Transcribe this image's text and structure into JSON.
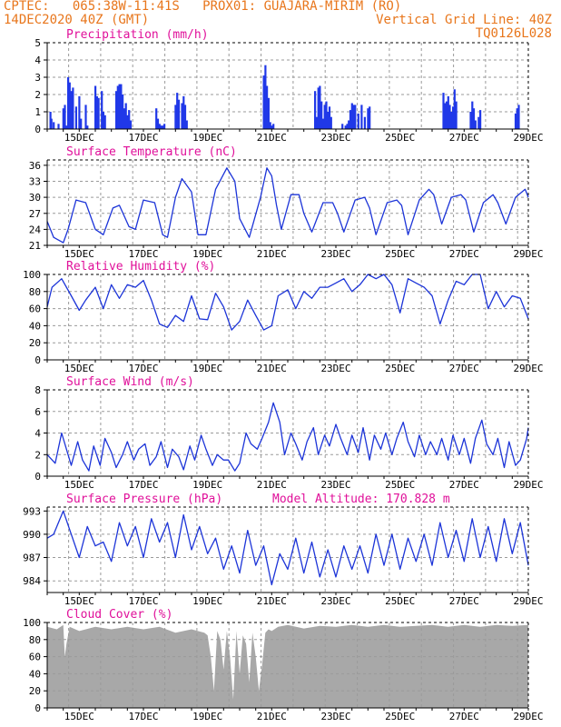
{
  "header": {
    "line1": "CPTEC:   065:38W-11:41S   PROX01: GUAJARA-MIRIM (RO)",
    "line2_left": "14DEC2020 40Z (GMT)",
    "line2_right": "Vertical Grid Line: 40Z",
    "line3_right": "TQ0126L028"
  },
  "colors": {
    "header": "#e8761c",
    "panel_title": "#e0109a",
    "series_line": "#1c34d8",
    "bar": "#2038e8",
    "cloud": "#a8a8a8",
    "grid": "#9a9a9a"
  },
  "chart_data": [
    {
      "id": "precipitation",
      "type": "bar",
      "title": "Precipitation (mm/h)",
      "x_tick_labels": [
        "15DEC",
        "17DEC",
        "19DEC",
        "21DEC",
        "23DEC",
        "25DEC",
        "27DEC",
        "29DEC"
      ],
      "ylim": [
        0,
        5
      ],
      "yticks": [
        0,
        1,
        2,
        3,
        4,
        5
      ],
      "grid": true,
      "x_range_days": [
        14.0,
        29.0
      ],
      "bars_x_days": [
        14.1,
        14.13,
        14.2,
        14.35,
        14.5,
        14.55,
        14.6,
        14.65,
        14.7,
        14.75,
        14.8,
        14.9,
        15.0,
        15.05,
        15.2,
        15.25,
        15.5,
        15.55,
        15.6,
        15.7,
        15.75,
        15.8,
        16.15,
        16.2,
        16.25,
        16.3,
        16.35,
        16.4,
        16.45,
        16.5,
        16.55,
        16.6,
        17.4,
        17.45,
        17.5,
        17.55,
        17.6,
        17.65,
        18.0,
        18.05,
        18.1,
        18.2,
        18.25,
        18.3,
        18.35,
        20.75,
        20.8,
        20.85,
        20.9,
        20.95,
        21.0,
        21.05,
        22.35,
        22.4,
        22.45,
        22.5,
        22.55,
        22.6,
        22.65,
        22.7,
        22.75,
        22.8,
        22.85,
        23.2,
        23.3,
        23.35,
        23.4,
        23.45,
        23.5,
        23.55,
        23.6,
        23.7,
        23.8,
        23.9,
        24.0,
        24.05,
        26.35,
        26.4,
        26.45,
        26.5,
        26.55,
        26.6,
        26.65,
        26.7,
        26.75,
        27.2,
        27.25,
        27.3,
        27.35,
        27.45,
        27.5,
        28.6,
        28.65,
        28.7
      ],
      "values": [
        1.0,
        0.6,
        0.4,
        0.3,
        1.2,
        1.4,
        0.2,
        3.0,
        2.7,
        2.2,
        2.4,
        1.3,
        1.9,
        0.6,
        1.4,
        0.2,
        2.5,
        1.9,
        1.8,
        2.2,
        1.0,
        0.8,
        2.2,
        2.5,
        2.6,
        2.6,
        2.0,
        1.2,
        1.5,
        0.8,
        1.1,
        0.5,
        1.2,
        0.6,
        0.3,
        0.2,
        0.2,
        0.3,
        1.4,
        2.1,
        1.7,
        1.5,
        1.9,
        1.4,
        0.5,
        3.1,
        3.7,
        2.5,
        1.8,
        0.4,
        0.2,
        0.3,
        2.2,
        0.7,
        2.4,
        2.5,
        1.6,
        0.6,
        1.4,
        1.6,
        1.0,
        1.3,
        0.7,
        0.3,
        0.2,
        0.3,
        0.5,
        1.1,
        1.5,
        1.4,
        1.4,
        0.9,
        1.4,
        0.7,
        1.2,
        1.3,
        2.1,
        1.5,
        1.6,
        1.9,
        1.4,
        1.0,
        1.3,
        2.3,
        1.6,
        1.0,
        1.6,
        1.2,
        0.5,
        0.7,
        1.1,
        0.9,
        1.2,
        1.4
      ]
    },
    {
      "id": "surface-temperature",
      "type": "line",
      "title": "Surface Temperature (nC)",
      "x_tick_labels": [
        "15DEC",
        "17DEC",
        "19DEC",
        "21DEC",
        "23DEC",
        "25DEC",
        "27DEC",
        "29DEC"
      ],
      "ylim": [
        21,
        37
      ],
      "yticks": [
        21,
        24,
        27,
        30,
        33,
        36
      ],
      "grid": true,
      "x_days": [
        14.0,
        14.2,
        14.5,
        14.65,
        14.9,
        15.2,
        15.5,
        15.75,
        16.05,
        16.25,
        16.55,
        16.75,
        17.0,
        17.35,
        17.6,
        17.75,
        18.0,
        18.2,
        18.5,
        18.7,
        18.95,
        19.25,
        19.6,
        19.85,
        20.0,
        20.3,
        20.65,
        20.85,
        21.0,
        21.15,
        21.3,
        21.6,
        21.85,
        22.0,
        22.25,
        22.6,
        22.9,
        23.05,
        23.25,
        23.6,
        23.9,
        24.05,
        24.25,
        24.6,
        24.9,
        25.05,
        25.25,
        25.6,
        25.9,
        26.05,
        26.3,
        26.6,
        26.9,
        27.05,
        27.3,
        27.6,
        27.9,
        28.05,
        28.3,
        28.6,
        28.9,
        29.0
      ],
      "y": [
        25.5,
        22.5,
        21.5,
        24.0,
        29.5,
        29.0,
        24.0,
        23.0,
        28.0,
        28.5,
        24.5,
        24.0,
        29.5,
        29.0,
        23.0,
        22.5,
        30.0,
        33.5,
        31.0,
        23.0,
        23.0,
        31.5,
        35.5,
        33.0,
        26.0,
        22.5,
        30.0,
        35.5,
        34.0,
        28.5,
        24.0,
        30.5,
        30.5,
        27.0,
        23.5,
        29.0,
        29.0,
        27.0,
        23.5,
        29.5,
        30.0,
        28.0,
        23.0,
        29.0,
        29.5,
        28.5,
        23.0,
        29.5,
        31.5,
        30.5,
        25.0,
        30.0,
        30.5,
        29.5,
        23.5,
        29.0,
        30.5,
        29.0,
        25.0,
        30.0,
        31.5,
        30.0
      ]
    },
    {
      "id": "relative-humidity",
      "type": "line",
      "title": "Relative Humidity (%)",
      "x_tick_labels": [
        "15DEC",
        "17DEC",
        "19DEC",
        "21DEC",
        "23DEC",
        "25DEC",
        "27DEC",
        "29DEC"
      ],
      "ylim": [
        0,
        100
      ],
      "yticks": [
        0,
        20,
        40,
        60,
        80,
        100
      ],
      "grid": true,
      "x_days": [
        14.0,
        14.15,
        14.45,
        14.75,
        15.0,
        15.2,
        15.5,
        15.75,
        16.0,
        16.25,
        16.5,
        16.75,
        17.0,
        17.25,
        17.5,
        17.75,
        18.0,
        18.25,
        18.5,
        18.75,
        19.0,
        19.25,
        19.5,
        19.75,
        20.0,
        20.25,
        20.5,
        20.75,
        21.0,
        21.2,
        21.5,
        21.75,
        22.0,
        22.25,
        22.5,
        22.75,
        23.0,
        23.25,
        23.5,
        23.75,
        24.0,
        24.25,
        24.5,
        24.75,
        25.0,
        25.25,
        25.5,
        25.75,
        26.0,
        26.25,
        26.5,
        26.75,
        27.0,
        27.25,
        27.5,
        27.75,
        28.0,
        28.25,
        28.5,
        28.75,
        29.0
      ],
      "y": [
        62,
        85,
        95,
        75,
        58,
        70,
        85,
        60,
        88,
        72,
        88,
        85,
        93,
        70,
        42,
        38,
        52,
        45,
        75,
        48,
        47,
        78,
        62,
        35,
        45,
        70,
        52,
        35,
        40,
        75,
        82,
        60,
        80,
        72,
        85,
        85,
        90,
        95,
        80,
        88,
        100,
        95,
        100,
        88,
        55,
        95,
        90,
        85,
        75,
        42,
        70,
        92,
        88,
        100,
        100,
        60,
        80,
        62,
        75,
        72,
        48
      ]
    },
    {
      "id": "surface-wind",
      "type": "line",
      "title": "Surface Wind (m/s)",
      "x_tick_labels": [
        "15DEC",
        "17DEC",
        "19DEC",
        "21DEC",
        "23DEC",
        "25DEC",
        "27DEC",
        "29DEC"
      ],
      "ylim": [
        0,
        8
      ],
      "yticks": [
        0,
        2,
        4,
        6,
        8
      ],
      "grid": true,
      "x_days": [
        14.0,
        14.25,
        14.45,
        14.6,
        14.75,
        14.95,
        15.1,
        15.3,
        15.45,
        15.65,
        15.8,
        16.0,
        16.15,
        16.35,
        16.5,
        16.7,
        16.85,
        17.05,
        17.2,
        17.4,
        17.55,
        17.75,
        17.9,
        18.1,
        18.25,
        18.45,
        18.6,
        18.8,
        18.95,
        19.15,
        19.3,
        19.5,
        19.65,
        19.85,
        20.0,
        20.2,
        20.35,
        20.55,
        20.7,
        20.9,
        21.05,
        21.25,
        21.4,
        21.6,
        21.75,
        21.95,
        22.1,
        22.3,
        22.45,
        22.65,
        22.8,
        23.0,
        23.15,
        23.35,
        23.5,
        23.7,
        23.85,
        24.05,
        24.2,
        24.4,
        24.55,
        24.75,
        24.9,
        25.1,
        25.25,
        25.45,
        25.6,
        25.8,
        25.95,
        26.15,
        26.3,
        26.5,
        26.65,
        26.85,
        27.0,
        27.2,
        27.35,
        27.55,
        27.7,
        27.9,
        28.05,
        28.25,
        28.4,
        28.6,
        28.75,
        28.95,
        29.0
      ],
      "y": [
        2.0,
        1.2,
        4.0,
        2.5,
        1.0,
        3.2,
        1.5,
        0.5,
        2.8,
        1.0,
        3.5,
        2.2,
        0.8,
        2.0,
        3.2,
        1.5,
        2.5,
        3.0,
        1.0,
        1.8,
        3.2,
        0.8,
        2.5,
        1.8,
        0.6,
        2.8,
        1.5,
        3.8,
        2.5,
        1.0,
        2.0,
        1.5,
        1.5,
        0.5,
        1.2,
        4.0,
        3.0,
        2.5,
        3.5,
        5.0,
        6.8,
        5.0,
        2.0,
        4.0,
        3.0,
        1.5,
        3.2,
        4.5,
        2.0,
        3.8,
        2.8,
        4.8,
        3.5,
        2.0,
        3.8,
        2.2,
        4.5,
        1.5,
        3.8,
        2.5,
        4.0,
        2.0,
        3.5,
        5.0,
        3.2,
        1.8,
        3.8,
        2.0,
        3.2,
        2.0,
        3.5,
        1.5,
        3.8,
        2.0,
        3.5,
        1.2,
        3.5,
        5.2,
        3.0,
        2.0,
        3.5,
        0.8,
        3.2,
        1.0,
        1.5,
        3.5,
        4.5
      ]
    },
    {
      "id": "surface-pressure",
      "type": "line",
      "title": "Surface Pressure (hPa)",
      "annotation": "Model Altitude: 170.828 m",
      "x_tick_labels": [
        "15DEC",
        "17DEC",
        "19DEC",
        "21DEC",
        "23DEC",
        "25DEC",
        "27DEC",
        "29DEC"
      ],
      "ylim": [
        982.5,
        993.5
      ],
      "yticks": [
        984,
        987,
        990,
        993
      ],
      "grid": true,
      "x_days": [
        14.0,
        14.2,
        14.5,
        14.75,
        15.0,
        15.25,
        15.5,
        15.75,
        16.0,
        16.25,
        16.5,
        16.75,
        17.0,
        17.25,
        17.5,
        17.75,
        18.0,
        18.25,
        18.5,
        18.75,
        19.0,
        19.25,
        19.5,
        19.75,
        20.0,
        20.25,
        20.5,
        20.75,
        21.0,
        21.25,
        21.5,
        21.75,
        22.0,
        22.25,
        22.5,
        22.75,
        23.0,
        23.25,
        23.5,
        23.75,
        24.0,
        24.25,
        24.5,
        24.75,
        25.0,
        25.25,
        25.5,
        25.75,
        26.0,
        26.25,
        26.5,
        26.75,
        27.0,
        27.25,
        27.5,
        27.75,
        28.0,
        28.25,
        28.5,
        28.75,
        29.0
      ],
      "y": [
        989.5,
        990.0,
        993.0,
        990.0,
        987.0,
        991.0,
        988.5,
        989.0,
        986.5,
        991.5,
        988.5,
        991.0,
        987.0,
        992.0,
        989.0,
        991.5,
        987.0,
        992.5,
        988.0,
        991.0,
        987.5,
        989.5,
        985.5,
        988.5,
        985.0,
        990.5,
        986.0,
        988.5,
        983.5,
        987.5,
        985.5,
        989.5,
        985.0,
        989.0,
        984.5,
        988.0,
        984.5,
        988.5,
        985.5,
        988.5,
        985.0,
        990.0,
        986.0,
        990.0,
        985.5,
        989.5,
        986.5,
        990.0,
        986.0,
        991.5,
        987.0,
        990.5,
        986.5,
        992.0,
        987.0,
        991.0,
        986.5,
        992.0,
        987.5,
        991.5,
        986.0
      ]
    },
    {
      "id": "cloud-cover",
      "type": "area",
      "title": "Cloud Cover (%)",
      "x_tick_labels": [
        "15DEC",
        "17DEC",
        "19DEC",
        "21DEC",
        "23DEC",
        "25DEC",
        "27DEC",
        "29DEC"
      ],
      "ylim": [
        0,
        100
      ],
      "yticks": [
        0,
        20,
        40,
        60,
        80,
        100
      ],
      "grid": true,
      "x_days": [
        14.0,
        14.3,
        14.5,
        14.55,
        14.6,
        14.7,
        15.0,
        15.5,
        16.0,
        16.5,
        17.0,
        17.5,
        18.0,
        18.5,
        18.9,
        19.0,
        19.1,
        19.2,
        19.3,
        19.4,
        19.5,
        19.6,
        19.7,
        19.8,
        19.9,
        20.0,
        20.1,
        20.2,
        20.3,
        20.4,
        20.5,
        20.6,
        20.7,
        20.8,
        20.9,
        21.0,
        21.2,
        21.5,
        22.0,
        22.5,
        23.0,
        23.5,
        24.0,
        24.5,
        25.0,
        25.5,
        26.0,
        26.5,
        27.0,
        27.5,
        28.0,
        28.5,
        29.0
      ],
      "y": [
        95,
        92,
        97,
        60,
        75,
        95,
        90,
        95,
        92,
        95,
        92,
        95,
        88,
        92,
        88,
        85,
        60,
        20,
        90,
        80,
        45,
        90,
        60,
        10,
        90,
        40,
        85,
        75,
        30,
        88,
        60,
        20,
        50,
        88,
        92,
        90,
        95,
        97,
        93,
        96,
        95,
        97,
        95,
        97,
        95,
        96,
        97,
        95,
        97,
        95,
        97,
        96,
        97
      ]
    }
  ]
}
